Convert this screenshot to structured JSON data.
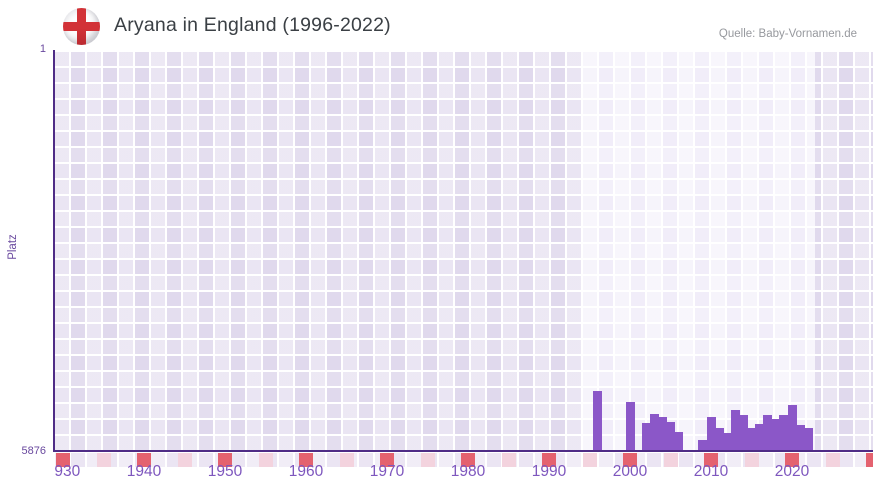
{
  "header": {
    "title": "Aryana in England (1996-2022)",
    "source": "Quelle: Baby-Vornamen.de",
    "flag_icon": "england-flag-icon"
  },
  "chart_data": {
    "type": "bar",
    "title": "Aryana in England (1996-2022)",
    "ylabel": "Platz",
    "y_axis": {
      "top_tick": "1",
      "bottom_tick": "5876",
      "min": 1,
      "max": 5876,
      "inverted": true
    },
    "x_axis": {
      "ticks": [
        1930,
        1940,
        1950,
        1960,
        1970,
        1980,
        1990,
        2000,
        2010,
        2020
      ],
      "start_year": 1928,
      "end_year": 2030,
      "mark_step": 5
    },
    "highlight_years": [
      1996,
      2022
    ],
    "legend": "none",
    "grid": "checkered-cells",
    "points": [
      {
        "year": 1996,
        "rank": 5010
      },
      {
        "year": 1997,
        "rank": null
      },
      {
        "year": 1998,
        "rank": null
      },
      {
        "year": 1999,
        "rank": null
      },
      {
        "year": 2000,
        "rank": 5170
      },
      {
        "year": 2001,
        "rank": null
      },
      {
        "year": 2002,
        "rank": 5480
      },
      {
        "year": 2003,
        "rank": 5350
      },
      {
        "year": 2004,
        "rank": 5390
      },
      {
        "year": 2005,
        "rank": 5465
      },
      {
        "year": 2006,
        "rank": 5610
      },
      {
        "year": 2007,
        "rank": null
      },
      {
        "year": 2008,
        "rank": null
      },
      {
        "year": 2009,
        "rank": 5730
      },
      {
        "year": 2010,
        "rank": 5390
      },
      {
        "year": 2011,
        "rank": 5550
      },
      {
        "year": 2012,
        "rank": 5625
      },
      {
        "year": 2013,
        "rank": 5290
      },
      {
        "year": 2014,
        "rank": 5360
      },
      {
        "year": 2015,
        "rank": 5550
      },
      {
        "year": 2016,
        "rank": 5495
      },
      {
        "year": 2017,
        "rank": 5360
      },
      {
        "year": 2018,
        "rank": 5420
      },
      {
        "year": 2019,
        "rank": 5360
      },
      {
        "year": 2020,
        "rank": 5215
      },
      {
        "year": 2021,
        "rank": 5510
      },
      {
        "year": 2022,
        "rank": 5550
      }
    ],
    "colors": {
      "bar": "#8b57c8",
      "axis": "#4f2c86",
      "x_tick_label": "#7e57be",
      "y_tick_label": "#69489e",
      "decade_mark": "#e4626f",
      "half_decade_mark": "#f3d3de",
      "bg_outside": "#e0d9ed",
      "bg_inside": "#f1edf9",
      "bg_strip": "#ebe5f3",
      "title_text": "#3b4045",
      "source_text": "#97999e",
      "flag_red": "#d23237"
    }
  }
}
